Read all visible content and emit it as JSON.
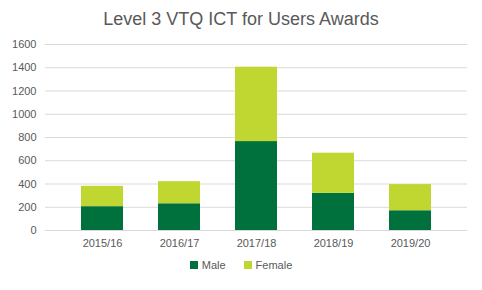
{
  "chart_data": {
    "type": "bar",
    "title": "Level 3 VTQ ICT for Users Awards",
    "categories": [
      "2015/16",
      "2016/17",
      "2017/18",
      "2018/19",
      "2019/20"
    ],
    "series": [
      {
        "name": "Male",
        "color": "#00703c",
        "values": [
          205,
          230,
          765,
          320,
          170
        ]
      },
      {
        "name": "Female",
        "color": "#bfd730",
        "values": [
          175,
          190,
          640,
          345,
          225
        ]
      }
    ],
    "stacked": true,
    "ylim": [
      0,
      1600
    ],
    "yticks": [
      0,
      200,
      400,
      600,
      800,
      1000,
      1200,
      1400,
      1600
    ],
    "grid": true,
    "legend": "bottom"
  }
}
